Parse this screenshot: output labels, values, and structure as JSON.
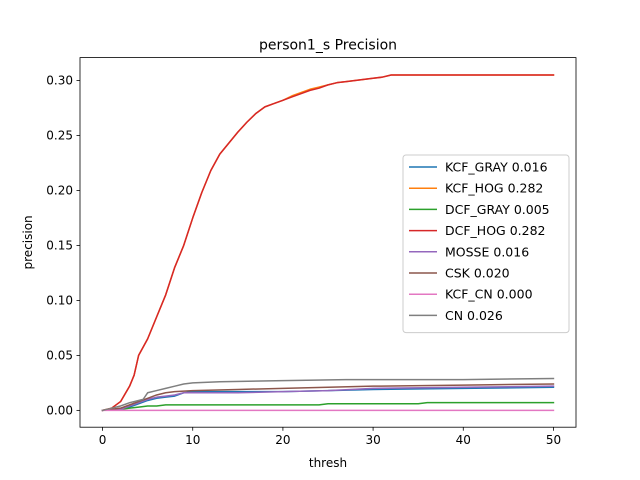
{
  "chart_data": {
    "type": "line",
    "title": "person1_s Precision",
    "xlabel": "thresh",
    "ylabel": "precision",
    "xlim": [
      -2.5,
      52.5
    ],
    "ylim": [
      -0.0153,
      0.3208
    ],
    "xticks": [
      0,
      10,
      20,
      30,
      40,
      50
    ],
    "xtick_labels": [
      "0",
      "10",
      "20",
      "30",
      "40",
      "50"
    ],
    "yticks": [
      0.0,
      0.05,
      0.1,
      0.15,
      0.2,
      0.25,
      0.3
    ],
    "ytick_labels": [
      "0.00",
      "0.05",
      "0.10",
      "0.15",
      "0.20",
      "0.25",
      "0.30"
    ],
    "grid": false,
    "legend_position": "center-right",
    "series": [
      {
        "name": "KCF_GRAY 0.016",
        "color": "#1f77b4",
        "points": [
          [
            0,
            0
          ],
          [
            2,
            0.001
          ],
          [
            3,
            0.003
          ],
          [
            4,
            0.006
          ],
          [
            5,
            0.009
          ],
          [
            6,
            0.011
          ],
          [
            7,
            0.012
          ],
          [
            8,
            0.013
          ],
          [
            9,
            0.016
          ],
          [
            10,
            0.017
          ],
          [
            15,
            0.017
          ],
          [
            20,
            0.017
          ],
          [
            25,
            0.018
          ],
          [
            30,
            0.019
          ],
          [
            40,
            0.02
          ],
          [
            50,
            0.021
          ]
        ]
      },
      {
        "name": "KCF_HOG 0.282",
        "color": "#ff7f0e",
        "points": [
          [
            0,
            0
          ],
          [
            1,
            0.002
          ],
          [
            2,
            0.008
          ],
          [
            3,
            0.022
          ],
          [
            3.5,
            0.032
          ],
          [
            4,
            0.05
          ],
          [
            5,
            0.065
          ],
          [
            6,
            0.085
          ],
          [
            7,
            0.105
          ],
          [
            8,
            0.13
          ],
          [
            9,
            0.15
          ],
          [
            10,
            0.175
          ],
          [
            11,
            0.198
          ],
          [
            12,
            0.218
          ],
          [
            13,
            0.233
          ],
          [
            14,
            0.243
          ],
          [
            15,
            0.253
          ],
          [
            16,
            0.262
          ],
          [
            17,
            0.27
          ],
          [
            18,
            0.276
          ],
          [
            19,
            0.279
          ],
          [
            20,
            0.282
          ],
          [
            21,
            0.286
          ],
          [
            22,
            0.289
          ],
          [
            23,
            0.292
          ],
          [
            24,
            0.294
          ],
          [
            25,
            0.296
          ],
          [
            26,
            0.298
          ],
          [
            27,
            0.299
          ],
          [
            28,
            0.3
          ],
          [
            29,
            0.301
          ],
          [
            30,
            0.302
          ],
          [
            31,
            0.303
          ],
          [
            32,
            0.305
          ],
          [
            40,
            0.305
          ],
          [
            50,
            0.305
          ]
        ]
      },
      {
        "name": "DCF_GRAY 0.005",
        "color": "#2ca02c",
        "points": [
          [
            0,
            0
          ],
          [
            2,
            0.001
          ],
          [
            3,
            0.002
          ],
          [
            4,
            0.003
          ],
          [
            5,
            0.004
          ],
          [
            6,
            0.004
          ],
          [
            7,
            0.005
          ],
          [
            10,
            0.005
          ],
          [
            20,
            0.005
          ],
          [
            24,
            0.005
          ],
          [
            25,
            0.006
          ],
          [
            35,
            0.006
          ],
          [
            36,
            0.007
          ],
          [
            50,
            0.007
          ]
        ]
      },
      {
        "name": "DCF_HOG 0.282",
        "color": "#d62728",
        "points": [
          [
            0,
            0
          ],
          [
            1,
            0.002
          ],
          [
            2,
            0.008
          ],
          [
            3,
            0.022
          ],
          [
            3.5,
            0.032
          ],
          [
            4,
            0.05
          ],
          [
            5,
            0.065
          ],
          [
            6,
            0.085
          ],
          [
            7,
            0.105
          ],
          [
            8,
            0.13
          ],
          [
            9,
            0.15
          ],
          [
            10,
            0.175
          ],
          [
            11,
            0.198
          ],
          [
            12,
            0.218
          ],
          [
            13,
            0.233
          ],
          [
            14,
            0.243
          ],
          [
            15,
            0.253
          ],
          [
            16,
            0.262
          ],
          [
            17,
            0.27
          ],
          [
            18,
            0.276
          ],
          [
            19,
            0.279
          ],
          [
            20,
            0.282
          ],
          [
            21,
            0.285
          ],
          [
            22,
            0.288
          ],
          [
            23,
            0.291
          ],
          [
            24,
            0.293
          ],
          [
            25,
            0.296
          ],
          [
            26,
            0.298
          ],
          [
            27,
            0.299
          ],
          [
            28,
            0.3
          ],
          [
            29,
            0.301
          ],
          [
            30,
            0.302
          ],
          [
            31,
            0.303
          ],
          [
            32,
            0.305
          ],
          [
            40,
            0.305
          ],
          [
            50,
            0.305
          ]
        ]
      },
      {
        "name": "MOSSE 0.016",
        "color": "#9467bd",
        "points": [
          [
            0,
            0
          ],
          [
            2,
            0.001
          ],
          [
            3,
            0.004
          ],
          [
            4,
            0.007
          ],
          [
            5,
            0.01
          ],
          [
            6,
            0.012
          ],
          [
            7,
            0.013
          ],
          [
            8,
            0.014
          ],
          [
            9,
            0.016
          ],
          [
            10,
            0.016
          ],
          [
            15,
            0.016
          ],
          [
            20,
            0.017
          ],
          [
            25,
            0.018
          ],
          [
            30,
            0.02
          ],
          [
            40,
            0.021
          ],
          [
            50,
            0.022
          ]
        ]
      },
      {
        "name": "CSK 0.020",
        "color": "#8c564b",
        "points": [
          [
            0,
            0
          ],
          [
            2,
            0.002
          ],
          [
            3,
            0.005
          ],
          [
            4,
            0.008
          ],
          [
            5,
            0.011
          ],
          [
            6,
            0.014
          ],
          [
            7,
            0.016
          ],
          [
            8,
            0.017
          ],
          [
            10,
            0.018
          ],
          [
            15,
            0.019
          ],
          [
            20,
            0.02
          ],
          [
            25,
            0.021
          ],
          [
            30,
            0.022
          ],
          [
            40,
            0.023
          ],
          [
            50,
            0.024
          ]
        ]
      },
      {
        "name": "KCF_CN 0.000",
        "color": "#e377c2",
        "points": [
          [
            0,
            0
          ],
          [
            50,
            0
          ]
        ]
      },
      {
        "name": "CN 0.026",
        "color": "#7f7f7f",
        "points": [
          [
            0,
            0
          ],
          [
            1,
            0.002
          ],
          [
            2,
            0.004
          ],
          [
            3,
            0.007
          ],
          [
            4,
            0.009
          ],
          [
            4.5,
            0.01
          ],
          [
            5,
            0.016
          ],
          [
            6,
            0.018
          ],
          [
            7,
            0.02
          ],
          [
            8,
            0.022
          ],
          [
            9,
            0.024
          ],
          [
            10,
            0.025
          ],
          [
            13,
            0.026
          ],
          [
            20,
            0.027
          ],
          [
            27,
            0.028
          ],
          [
            35,
            0.028
          ],
          [
            40,
            0.028
          ],
          [
            50,
            0.029
          ]
        ]
      }
    ]
  }
}
